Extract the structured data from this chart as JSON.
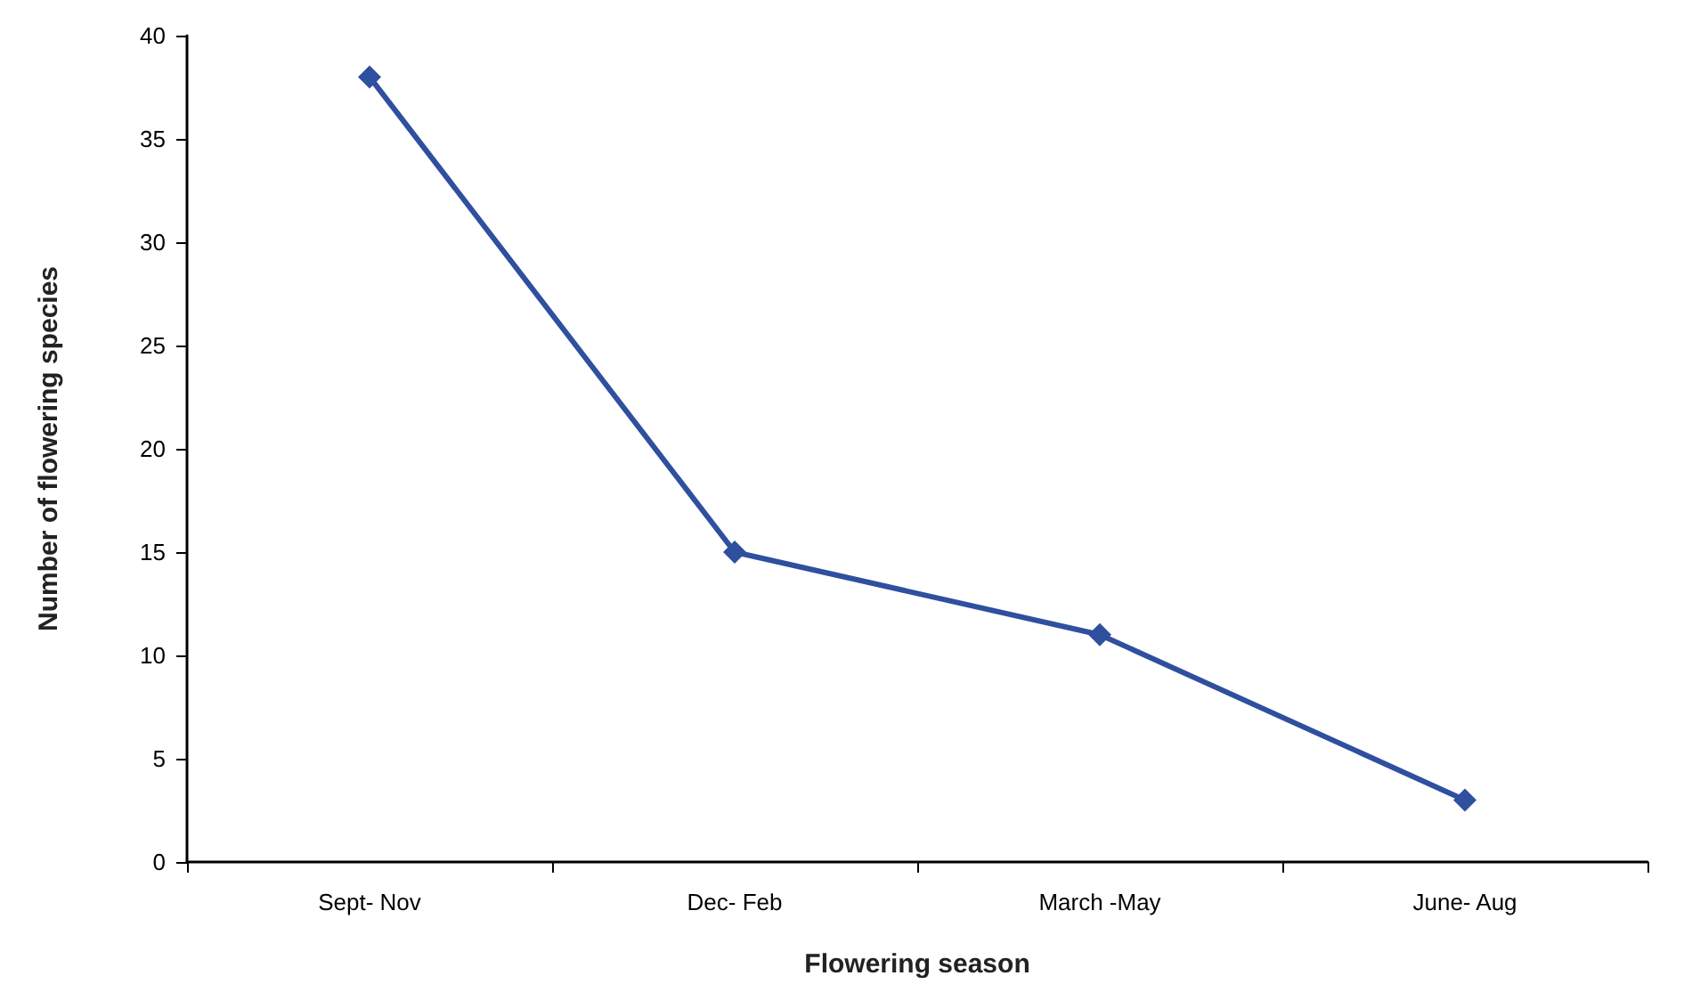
{
  "chart_data": {
    "type": "line",
    "xlabel": "Flowering season",
    "ylabel": "Number of flowering species",
    "categories": [
      "Sept- Nov",
      "Dec- Feb",
      "March -May",
      "June- Aug"
    ],
    "series": [
      {
        "color": "#2f4f9f",
        "values": [
          38,
          15,
          11,
          3
        ]
      }
    ],
    "ylim": [
      0,
      40
    ],
    "yticks": [
      0,
      5,
      10,
      15,
      20,
      25,
      30,
      35,
      40
    ],
    "grid": false,
    "marker": "diamond",
    "line_style": "solid"
  }
}
